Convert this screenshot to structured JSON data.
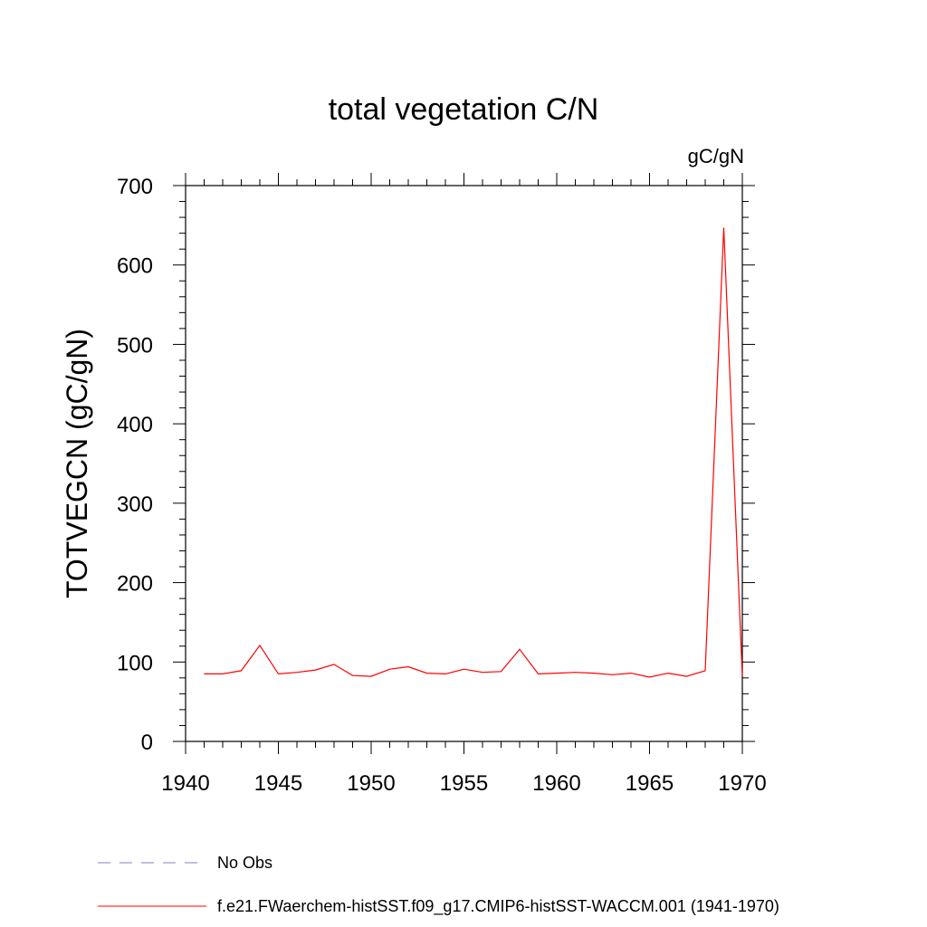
{
  "chart_data": {
    "type": "line",
    "title": "total vegetation C/N",
    "units": "gC/gN",
    "ylabel": "TOTVEGCN  (gC/gN)",
    "xlabel": "",
    "xlim": [
      1940,
      1970
    ],
    "ylim": [
      0,
      700
    ],
    "x_ticks": [
      1940,
      1945,
      1950,
      1955,
      1960,
      1965,
      1970
    ],
    "y_ticks": [
      0,
      100,
      200,
      300,
      400,
      500,
      600,
      700
    ],
    "x_tick_labels": [
      "1940",
      "1945",
      "1950",
      "1955",
      "1960",
      "1965",
      "1970"
    ],
    "y_tick_labels": [
      "0",
      "100",
      "200",
      "300",
      "400",
      "500",
      "600",
      "700"
    ],
    "grid": false,
    "legend_position": "bottom",
    "series": [
      {
        "name": "f.e21.FWaerchem-histSST.f09_g17.CMIP6-histSST-WACCM.001 (1941-1970)",
        "color": "#ff0000",
        "style": "solid",
        "x": [
          1941,
          1942,
          1943,
          1944,
          1945,
          1946,
          1947,
          1948,
          1949,
          1950,
          1951,
          1952,
          1953,
          1954,
          1955,
          1956,
          1957,
          1958,
          1959,
          1960,
          1961,
          1962,
          1963,
          1964,
          1965,
          1966,
          1967,
          1968,
          1969,
          1970
        ],
        "values": [
          85,
          85,
          89,
          121,
          85,
          87,
          90,
          97,
          83,
          82,
          91,
          94,
          86,
          85,
          91,
          87,
          88,
          116,
          85,
          86,
          87,
          86,
          84,
          86,
          81,
          86,
          82,
          89,
          647,
          82
        ]
      },
      {
        "name": "No Obs",
        "color": "#8080c0",
        "style": "dashed",
        "x": [],
        "values": []
      }
    ]
  }
}
